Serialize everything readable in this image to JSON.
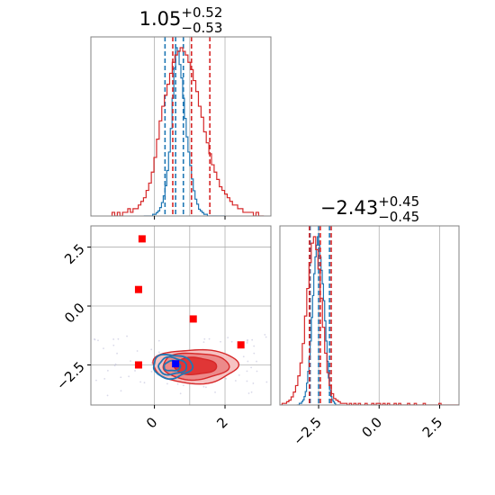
{
  "chart_data": {
    "type": "corner",
    "params": [
      {
        "title_main": "1.05",
        "title_sup": "+0.52",
        "title_sub": "−0.53",
        "range": [
          -1.8,
          3.3
        ],
        "ticks": [
          0,
          2
        ],
        "tick_labels": [
          "0",
          "2"
        ],
        "grid": [
          0,
          1,
          2
        ]
      },
      {
        "title_main": "−2.43",
        "title_sup": "+0.45",
        "title_sub": "−0.45",
        "range": [
          -4.1,
          3.3
        ],
        "ticks": [
          -2.5,
          0.0,
          2.5
        ],
        "tick_labels": [
          "−2.5",
          "0.0",
          "2.5"
        ],
        "grid": [
          -2.5,
          0,
          2.5
        ]
      }
    ],
    "series": [
      {
        "color": "#1f77b4",
        "hist1": {
          "edges": [
            -0.3,
            2.0
          ],
          "bins": 46,
          "counts": [
            0,
            0,
            0,
            0,
            0,
            1,
            1,
            2,
            3,
            5,
            8,
            12,
            18,
            27,
            38,
            52,
            70,
            88,
            100,
            98,
            90,
            82,
            70,
            58,
            47,
            38,
            30,
            22,
            15,
            10,
            7,
            4,
            3,
            2,
            1,
            1,
            0,
            0,
            0,
            0,
            0,
            0,
            0,
            0,
            0,
            0
          ]
        },
        "quantiles1": [
          0.3,
          0.6,
          0.82
        ],
        "hist2": {
          "edges": [
            -3.4,
            -1.6
          ],
          "bins": 36,
          "counts": [
            0,
            0,
            1,
            1,
            2,
            3,
            5,
            8,
            13,
            20,
            28,
            38,
            52,
            65,
            78,
            88,
            95,
            100,
            95,
            88,
            80,
            72,
            62,
            50,
            38,
            26,
            16,
            9,
            5,
            3,
            2,
            1,
            0,
            0,
            0,
            0
          ]
        },
        "quantiles2": [
          -2.85,
          -2.5,
          -2.05
        ],
        "contour": {
          "cx": 0.5,
          "cy": -2.55,
          "rx": 0.55,
          "ry": 0.5
        }
      },
      {
        "color": "#d62728",
        "hist1": {
          "edges": [
            -1.2,
            3.1
          ],
          "bins": 58,
          "counts": [
            1,
            0,
            1,
            0,
            1,
            1,
            2,
            1,
            2,
            2,
            3,
            4,
            5,
            7,
            9,
            12,
            16,
            21,
            26,
            30,
            33,
            36,
            39,
            42,
            44,
            45,
            46,
            45,
            44,
            42,
            40,
            37,
            34,
            30,
            27,
            23,
            20,
            17,
            14,
            12,
            10,
            8,
            7,
            6,
            5,
            4,
            3,
            3,
            2,
            2,
            1,
            1,
            1,
            1,
            0,
            1,
            0,
            0
          ]
        },
        "quantiles1": [
          0.52,
          1.05,
          1.57
        ],
        "hist2": {
          "edges": [
            -4.1,
            3.3
          ],
          "bins": 80,
          "counts": [
            0,
            1,
            1,
            2,
            3,
            5,
            8,
            12,
            18,
            26,
            38,
            55,
            72,
            88,
            100,
            104,
            96,
            84,
            66,
            48,
            32,
            20,
            12,
            7,
            4,
            3,
            2,
            1,
            1,
            1,
            0,
            1,
            0,
            1,
            0,
            1,
            0,
            0,
            1,
            0,
            0,
            1,
            0,
            1,
            1,
            0,
            1,
            0,
            1,
            0,
            0,
            1,
            0,
            1,
            0,
            0,
            0,
            1,
            0,
            0,
            1,
            0,
            0,
            0,
            1,
            0,
            0,
            0,
            0,
            0,
            0,
            1,
            0,
            0,
            0,
            0,
            0,
            0,
            0,
            0
          ]
        },
        "quantiles2": [
          -2.88,
          -2.43,
          -1.98
        ],
        "contour": {
          "cx": 1.15,
          "cy": -2.55,
          "rx": 1.2,
          "ry": 0.72
        }
      }
    ],
    "markers": [
      {
        "shape": "square",
        "color": "#ff0000",
        "x": -0.35,
        "y": 2.85
      },
      {
        "shape": "square",
        "color": "#ff0000",
        "x": -0.45,
        "y": 0.7
      },
      {
        "shape": "square",
        "color": "#ff0000",
        "x": 1.1,
        "y": -0.55
      },
      {
        "shape": "square",
        "color": "#ff0000",
        "x": 2.45,
        "y": -1.65
      },
      {
        "shape": "square",
        "color": "#ff0000",
        "x": -0.45,
        "y": -2.5
      },
      {
        "shape": "square",
        "color": "#0000ff",
        "x": 0.6,
        "y": -2.45
      }
    ]
  }
}
